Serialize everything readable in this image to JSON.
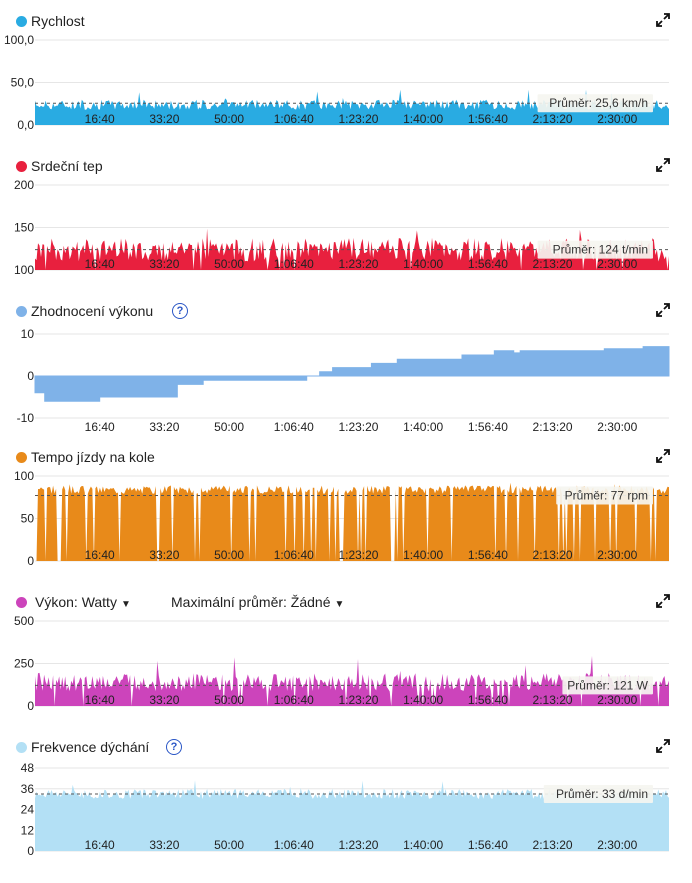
{
  "x_ticks": [
    "16:40",
    "33:20",
    "50:00",
    "1:06:40",
    "1:23:20",
    "1:40:00",
    "1:56:40",
    "2:13:20",
    "2:30:00"
  ],
  "x_tick_seconds": [
    1000,
    2000,
    3000,
    4000,
    5000,
    6000,
    7000,
    8000,
    9000
  ],
  "x_max_seconds": 9800,
  "panels": [
    {
      "title": "Rychlost",
      "color": "#29abe2",
      "dot_color": "#29abe2",
      "has_help": false,
      "y_ticks": [
        "100,0",
        "50,0",
        "0,0"
      ],
      "y_tick_values": [
        100,
        50,
        0
      ],
      "y_range": [
        0,
        100
      ],
      "avg_value": 25.6,
      "avg_label": "Průměr: 25,6 km/h",
      "base": 24,
      "variation": 6,
      "spike_max": 45,
      "drop_prob": 0.0
    },
    {
      "title": "Srdeční tep",
      "color": "#e8203e",
      "dot_color": "#e8203e",
      "has_help": false,
      "y_ticks": [
        "200",
        "150",
        "100"
      ],
      "y_tick_values": [
        200,
        150,
        100
      ],
      "y_range": [
        100,
        200
      ],
      "avg_value": 124,
      "avg_label": "Průměr: 124 t/min",
      "base": 124,
      "variation": 14,
      "spike_max": 152,
      "drop_prob": 0.03
    },
    {
      "title": "Zhodnocení výkonu",
      "color": "#7fb2e8",
      "dot_color": "#7fb2e8",
      "has_help": true,
      "y_ticks": [
        "10",
        "0",
        "-10"
      ],
      "y_tick_values": [
        10,
        0,
        -10
      ],
      "y_range": [
        -10,
        10
      ],
      "steps": [
        [
          0,
          -4
        ],
        [
          150,
          -6
        ],
        [
          400,
          -6
        ],
        [
          1000,
          -5
        ],
        [
          2000,
          -5
        ],
        [
          2200,
          -2
        ],
        [
          2300,
          -2
        ],
        [
          2600,
          -1
        ],
        [
          4200,
          0
        ],
        [
          4400,
          1
        ],
        [
          4600,
          2
        ],
        [
          5200,
          3
        ],
        [
          5600,
          4
        ],
        [
          6600,
          5
        ],
        [
          7100,
          6
        ],
        [
          7400,
          5.5
        ],
        [
          7500,
          6
        ],
        [
          8800,
          6.5
        ],
        [
          9400,
          7
        ],
        [
          9800,
          7
        ]
      ]
    },
    {
      "title": "Tempo jízdy na kole",
      "color": "#e88a1a",
      "dot_color": "#e88a1a",
      "has_help": false,
      "y_ticks": [
        "100",
        "50",
        "0"
      ],
      "y_tick_values": [
        100,
        50,
        0
      ],
      "y_range": [
        0,
        100
      ],
      "avg_value": 77,
      "avg_label": "Průměr: 77 rpm",
      "base": 84,
      "variation": 5,
      "spike_max": 93,
      "drop_prob": 0.12
    },
    {
      "title": "Výkon: Watty",
      "second_dropdown": "Maximální průměr: Žádné",
      "color": "#cc44bb",
      "dot_color": "#cc44bb",
      "has_help": false,
      "y_ticks": [
        "500",
        "250",
        "0"
      ],
      "y_tick_values": [
        500,
        250,
        0
      ],
      "y_range": [
        0,
        500
      ],
      "avg_value": 121,
      "avg_label": "Průměr: 121 W",
      "base": 140,
      "variation": 55,
      "spike_max": 300,
      "drop_prob": 0.05
    },
    {
      "title": "Frekvence dýchání",
      "color": "#b3e0f5",
      "dot_color": "#b3e0f5",
      "has_help": true,
      "y_ticks": [
        "48",
        "36",
        "24",
        "12",
        "0"
      ],
      "y_tick_values": [
        48,
        36,
        24,
        12,
        0
      ],
      "y_range": [
        0,
        48
      ],
      "avg_value": 33,
      "avg_label": "Průměr: 33 d/min",
      "base": 33,
      "variation": 3,
      "spike_max": 42,
      "drop_prob": 0.0
    }
  ]
}
